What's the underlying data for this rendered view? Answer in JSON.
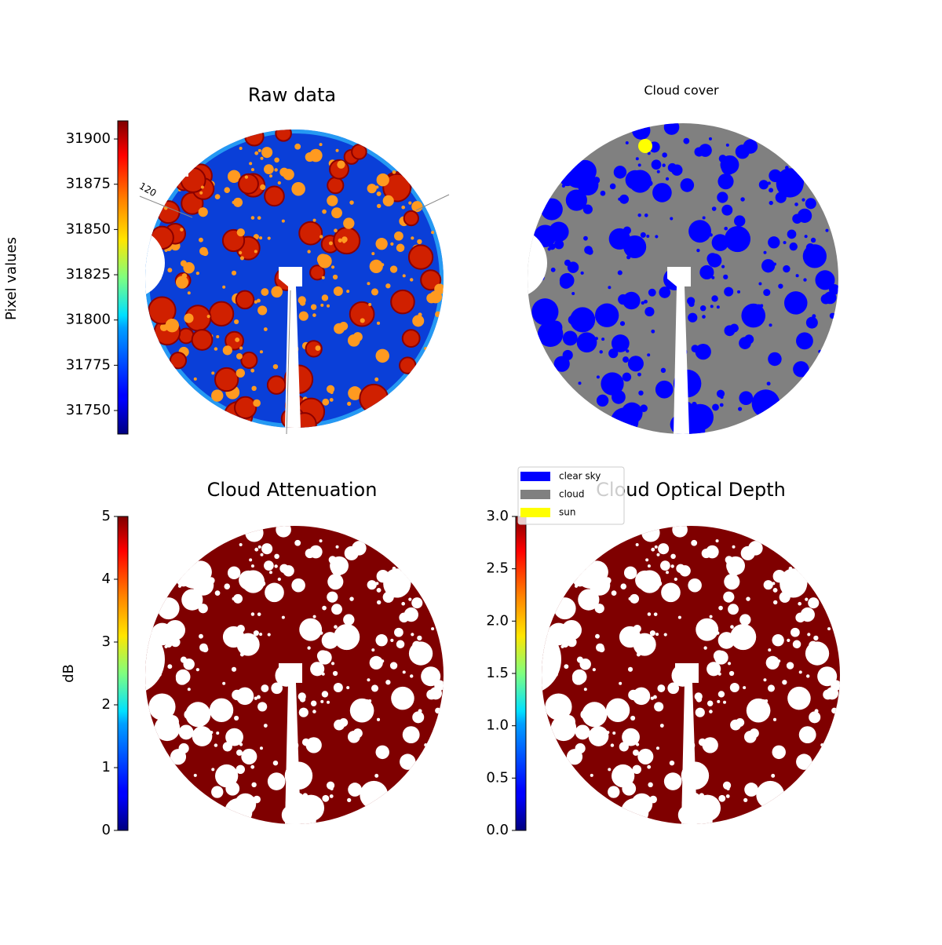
{
  "chart_data": [
    {
      "type": "image",
      "title": "Raw data",
      "annotation": "120",
      "colormap": "jet",
      "ylabel": "Pixel values",
      "ylim": [
        31737,
        31910
      ],
      "yticks": [
        31750,
        31775,
        31800,
        31825,
        31850,
        31875,
        31900
      ]
    },
    {
      "type": "image",
      "title": "Cloud cover",
      "series": [
        {
          "name": "clear sky",
          "color": "#0000ff"
        },
        {
          "name": "cloud",
          "color": "#808080"
        },
        {
          "name": "sun",
          "color": "#ffff00"
        }
      ]
    },
    {
      "type": "image",
      "title": "Cloud Attenuation",
      "colormap": "jet",
      "ylabel": "dB",
      "ylim": [
        0,
        5
      ],
      "yticks": [
        0,
        1,
        2,
        3,
        4,
        5
      ]
    },
    {
      "type": "image",
      "title": "Cloud Optical Depth",
      "colormap": "jet",
      "ylim": [
        0,
        3
      ],
      "yticks": [
        {
          "value": 0,
          "label": "0.0"
        },
        0.5,
        {
          "value": 1,
          "label": "1.0"
        },
        1.5,
        {
          "value": 2,
          "label": "2.0"
        },
        2.5,
        {
          "value": 3,
          "label": "3.0"
        }
      ]
    }
  ]
}
